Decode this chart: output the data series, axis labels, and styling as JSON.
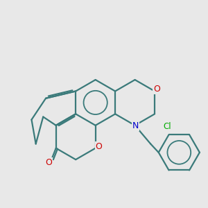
{
  "background_color": "#e8e8e8",
  "bond_color": "#3a7a7a",
  "bond_width": 1.6,
  "figsize": [
    3.0,
    3.0
  ],
  "dpi": 100,
  "atom_colors": {
    "O": "#cc0000",
    "N": "#0000cc",
    "Cl": "#00aa00"
  },
  "font_size": 9,
  "font_size_cl": 8.5
}
